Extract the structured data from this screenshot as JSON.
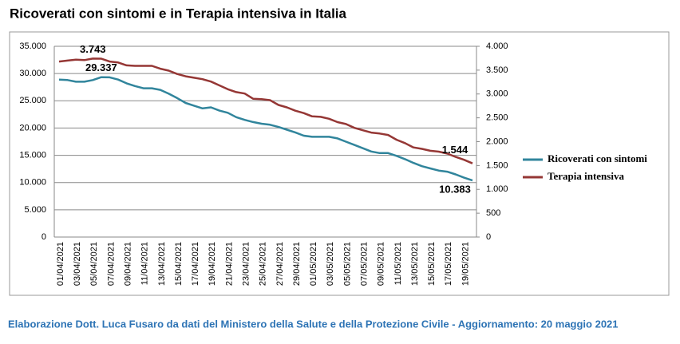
{
  "chart_data": {
    "type": "line",
    "title": "Ricoverati con sintomi e in Terapia intensiva in Italia",
    "source": "Elaborazione Dott. Luca Fusaro da dati del Ministero della Salute e della Protezione Civile - Aggiornamento: 20 maggio 2021",
    "categories": [
      "01/04/2021",
      null,
      "03/04/2021",
      null,
      "05/04/2021",
      null,
      "07/04/2021",
      null,
      "09/04/2021",
      null,
      "11/04/2021",
      null,
      "13/04/2021",
      null,
      "15/04/2021",
      null,
      "17/04/2021",
      null,
      "19/04/2021",
      null,
      "21/04/2021",
      null,
      "23/04/2021",
      null,
      "25/04/2021",
      null,
      "27/04/2021",
      null,
      "29/04/2021",
      null,
      "01/05/2021",
      null,
      "03/05/2021",
      null,
      "05/05/2021",
      null,
      "07/05/2021",
      null,
      "09/05/2021",
      null,
      "11/05/2021",
      null,
      "13/05/2021",
      null,
      "15/05/2021",
      null,
      "17/05/2021",
      null,
      "19/05/2021",
      null
    ],
    "series": [
      {
        "name": "Ricoverati con sintomi",
        "color": "#31859c",
        "axis": "y",
        "values": [
          28900,
          28800,
          28500,
          28500,
          28800,
          29337,
          29300,
          28900,
          28200,
          27700,
          27300,
          27300,
          27000,
          26300,
          25500,
          24600,
          24100,
          23600,
          23800,
          23200,
          22800,
          22000,
          21500,
          21100,
          20800,
          20600,
          20200,
          19700,
          19200,
          18600,
          18400,
          18400,
          18400,
          18100,
          17500,
          16900,
          16300,
          15700,
          15400,
          15400,
          14900,
          14300,
          13600,
          13000,
          12600,
          12200,
          12000,
          11500,
          10900,
          10383
        ],
        "value_labels": [
          null,
          null,
          null,
          null,
          null,
          "29.337",
          null,
          null,
          null,
          null,
          null,
          null,
          null,
          null,
          null,
          null,
          null,
          null,
          null,
          null,
          null,
          null,
          null,
          null,
          null,
          null,
          null,
          null,
          null,
          null,
          null,
          null,
          null,
          null,
          null,
          null,
          null,
          null,
          null,
          null,
          null,
          null,
          null,
          null,
          null,
          null,
          null,
          null,
          null,
          "10.383"
        ]
      },
      {
        "name": "Terapia intensiva",
        "color": "#953735",
        "axis": "y2",
        "values": [
          3680,
          3700,
          3720,
          3710,
          3743,
          3740,
          3680,
          3660,
          3600,
          3590,
          3590,
          3590,
          3530,
          3490,
          3420,
          3370,
          3340,
          3310,
          3260,
          3180,
          3100,
          3040,
          3010,
          2900,
          2890,
          2870,
          2770,
          2720,
          2650,
          2600,
          2530,
          2520,
          2480,
          2410,
          2370,
          2290,
          2240,
          2190,
          2170,
          2140,
          2040,
          1970,
          1880,
          1850,
          1810,
          1790,
          1750,
          1680,
          1620,
          1544
        ],
        "value_labels": [
          null,
          null,
          null,
          null,
          "3.743",
          null,
          null,
          null,
          null,
          null,
          null,
          null,
          null,
          null,
          null,
          null,
          null,
          null,
          null,
          null,
          null,
          null,
          null,
          null,
          null,
          null,
          null,
          null,
          null,
          null,
          null,
          null,
          null,
          null,
          null,
          null,
          null,
          null,
          null,
          null,
          null,
          null,
          null,
          null,
          null,
          null,
          null,
          null,
          null,
          "1.544"
        ]
      }
    ],
    "ylim": [
      0,
      35000
    ],
    "yticks": [
      0,
      {
        "value": 5000,
        "label": "5.000"
      },
      {
        "value": 10000,
        "label": "10.000"
      },
      {
        "value": 15000,
        "label": "15.000"
      },
      {
        "value": 20000,
        "label": "20.000"
      },
      {
        "value": 25000,
        "label": "25.000"
      },
      {
        "value": 30000,
        "label": "30.000"
      },
      {
        "value": 35000,
        "label": "35.000"
      }
    ],
    "y2lim": [
      0,
      4000
    ],
    "y2ticks": [
      0,
      500,
      {
        "value": 1000,
        "label": "1.000"
      },
      {
        "value": 1500,
        "label": "1.500"
      },
      {
        "value": 2000,
        "label": "2.000"
      },
      {
        "value": 2500,
        "label": "2.500"
      },
      {
        "value": 3000,
        "label": "3.000"
      },
      {
        "value": 3500,
        "label": "3.500"
      },
      {
        "value": 4000,
        "label": "4.000"
      }
    ],
    "grid": true,
    "legend": "right"
  }
}
